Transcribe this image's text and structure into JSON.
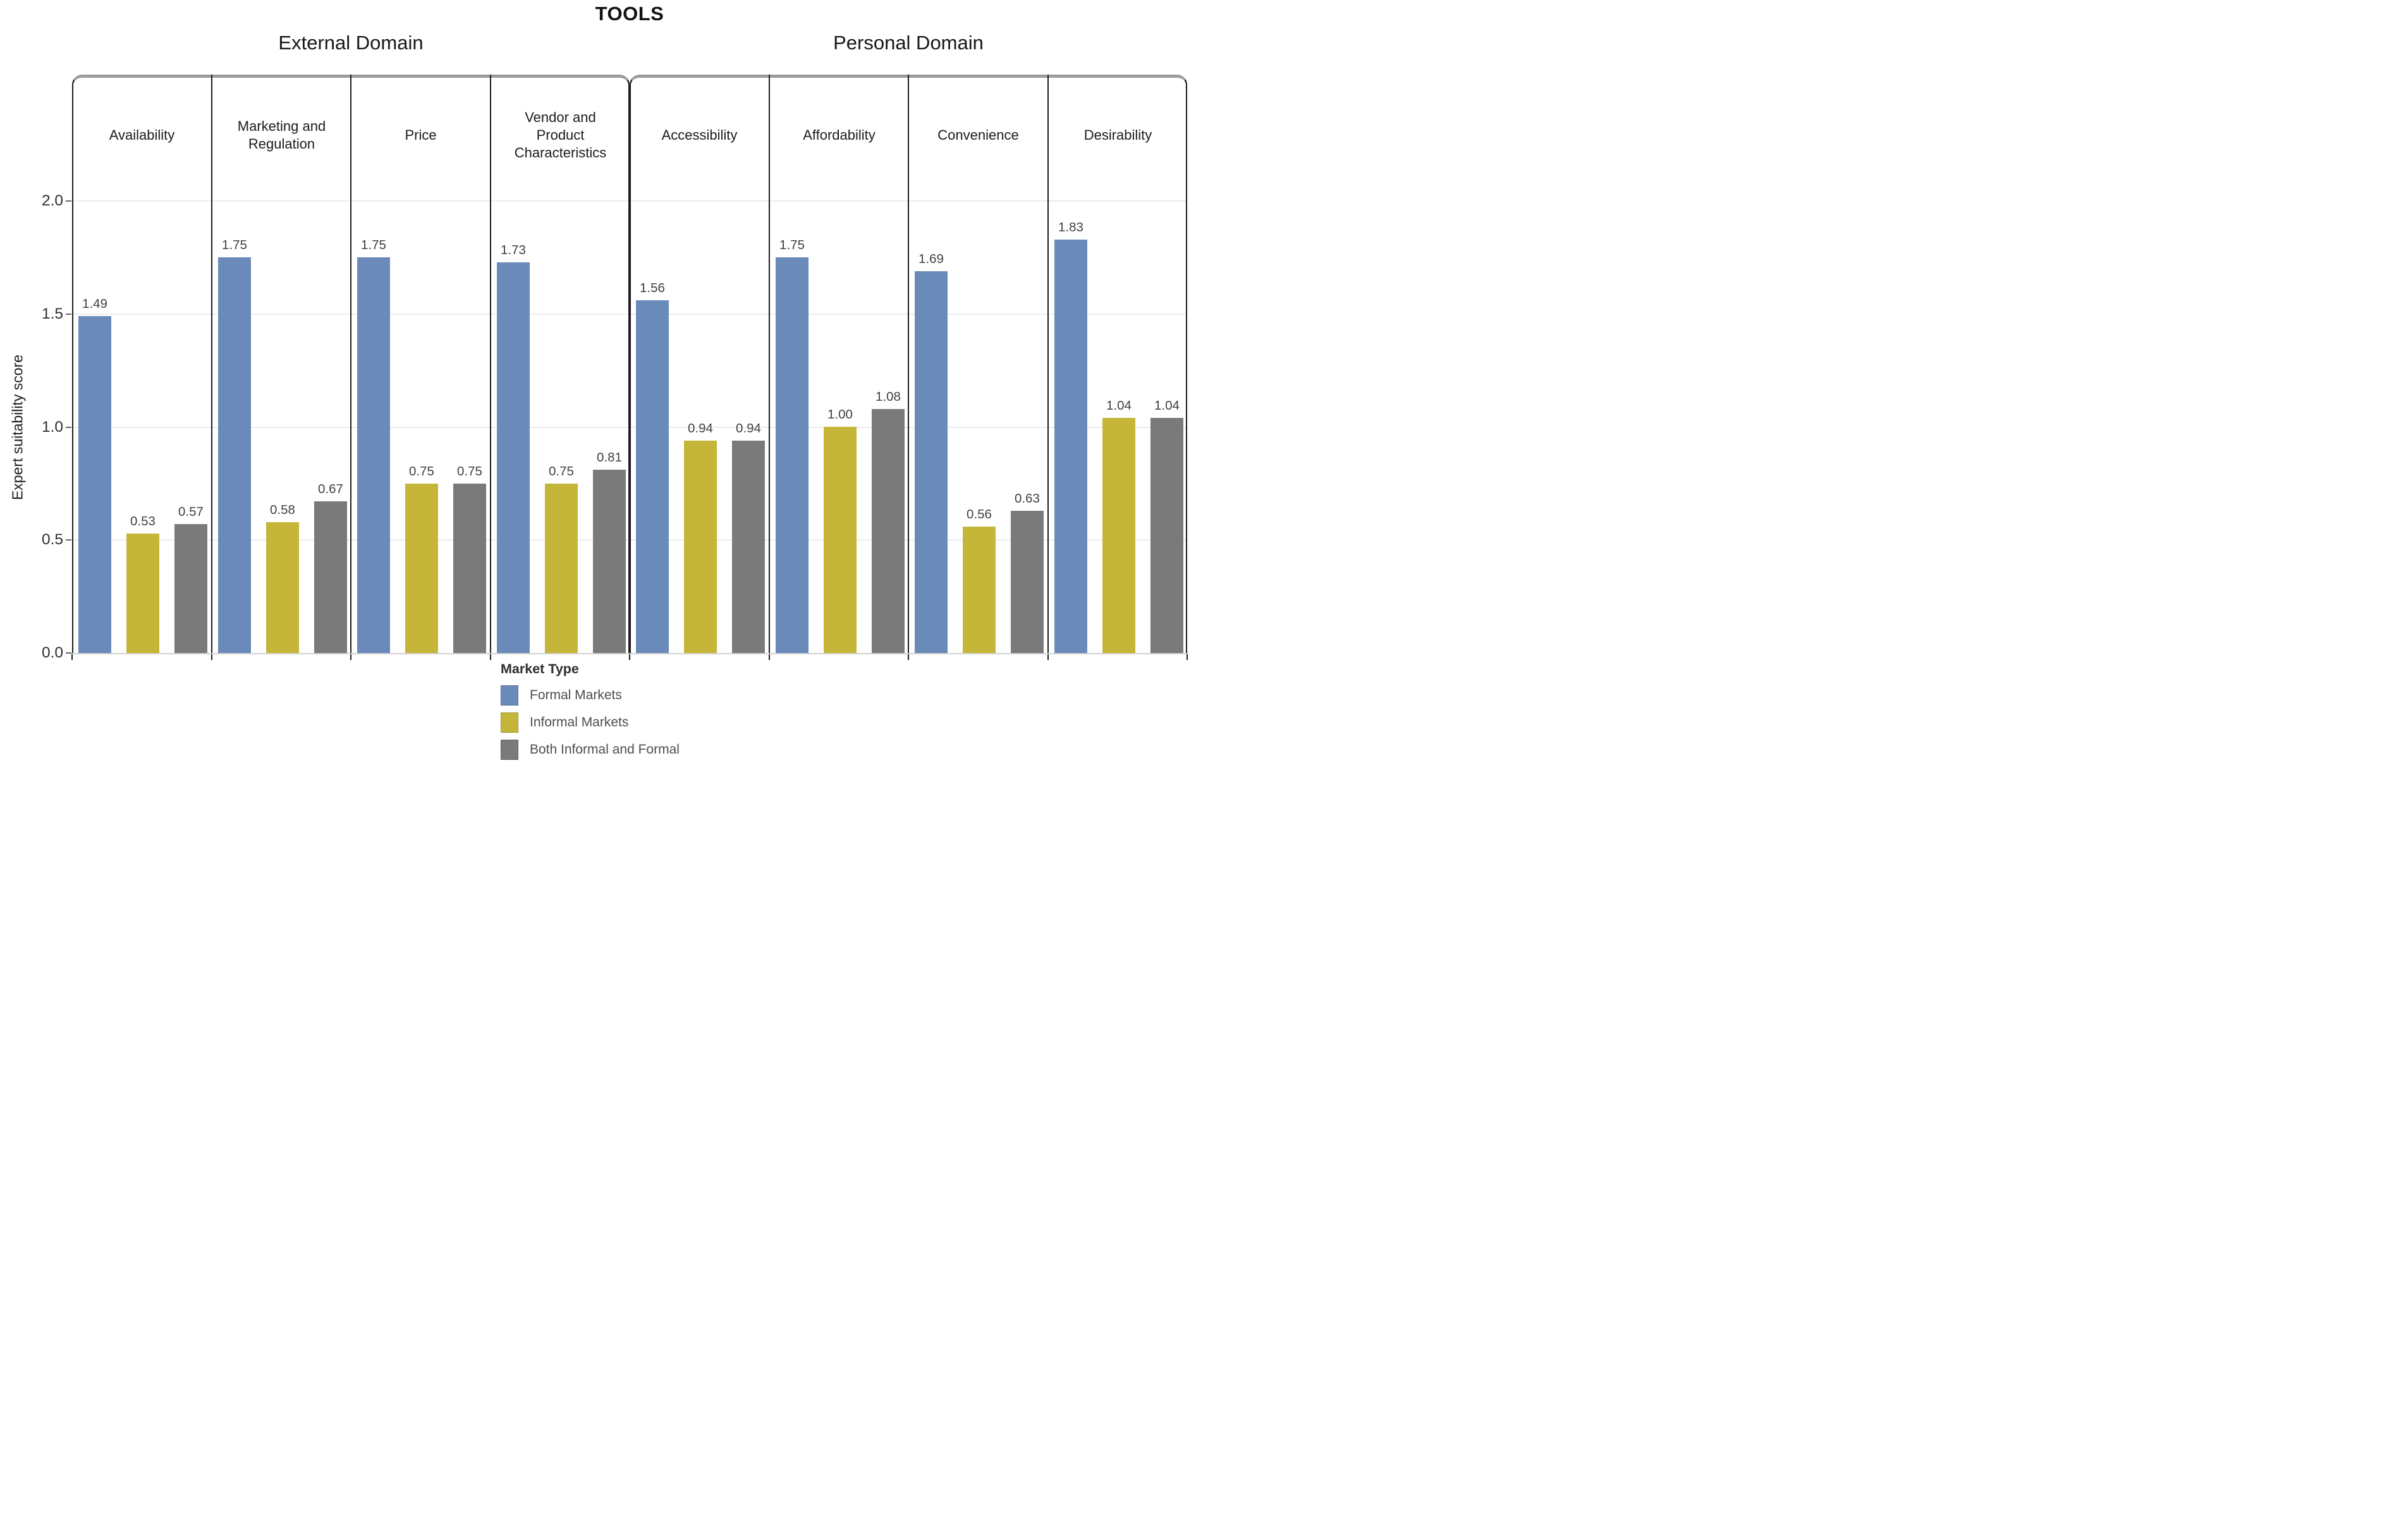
{
  "chart_data": {
    "type": "bar",
    "title": "TOOLS",
    "ylabel": "Expert suitability score",
    "ylim": [
      0,
      2.0
    ],
    "yticks": [
      0.0,
      0.5,
      1.0,
      1.5,
      2.0
    ],
    "grid": true,
    "legend_title": "Market Type",
    "legend_position": "bottom",
    "domains": [
      {
        "label": "External Domain",
        "categories": [
          "Availability",
          "Marketing and Regulation",
          "Price",
          "Vendor and Product Characteristics"
        ]
      },
      {
        "label": "Personal Domain",
        "categories": [
          "Accessibility",
          "Affordability",
          "Convenience",
          "Desirability"
        ]
      }
    ],
    "categories": [
      "Availability",
      "Marketing and Regulation",
      "Price",
      "Vendor and Product Characteristics",
      "Accessibility",
      "Affordability",
      "Convenience",
      "Desirability"
    ],
    "series": [
      {
        "name": "Formal Markets",
        "color": "#6a8bba",
        "values": [
          1.49,
          1.75,
          1.75,
          1.73,
          1.56,
          1.75,
          1.69,
          1.83
        ],
        "labels": [
          "1.49",
          "1.75",
          "1.75",
          "1.73",
          "1.56",
          "1.75",
          "1.69",
          "1.83"
        ]
      },
      {
        "name": "Informal Markets",
        "color": "#c5b639",
        "values": [
          0.53,
          0.58,
          0.75,
          0.75,
          0.94,
          1.0,
          0.56,
          1.04
        ],
        "labels": [
          "0.53",
          "0.58",
          "0.75",
          "0.75",
          "0.94",
          "1.00",
          "0.56",
          "1.04"
        ]
      },
      {
        "name": "Both Informal and Formal",
        "color": "#7a7a7a",
        "values": [
          0.57,
          0.67,
          0.75,
          0.81,
          0.94,
          1.08,
          0.63,
          1.04
        ],
        "labels": [
          "0.57",
          "0.67",
          "0.75",
          "0.81",
          "0.94",
          "1.08",
          "0.63",
          "1.04"
        ]
      }
    ],
    "colors": {
      "axis": "#1d1d1d",
      "panel_top_border": "#9c9c9c",
      "gridline": "#ececec",
      "baseline": "#d2d2d2",
      "value_label": "#414141",
      "tick_label": "#2e2e2e"
    }
  }
}
